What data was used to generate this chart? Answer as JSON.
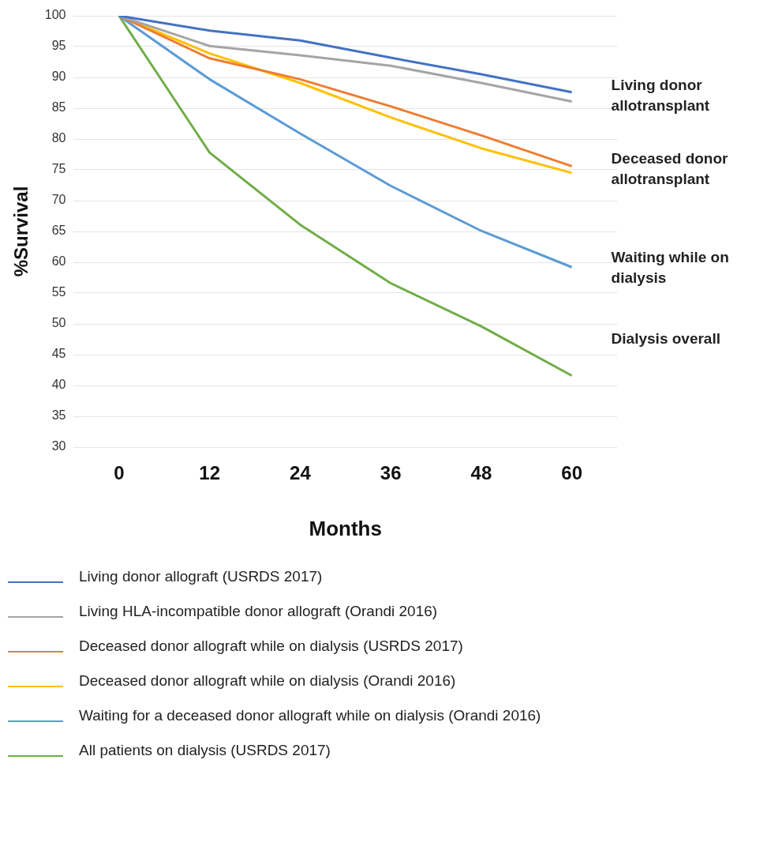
{
  "chart_data": {
    "type": "line",
    "xlabel": "Months",
    "ylabel": "%Survival",
    "categories": [
      "0",
      "12",
      "24",
      "36",
      "48",
      "60"
    ],
    "ylim": [
      30,
      100
    ],
    "yticks": [
      30,
      35,
      40,
      45,
      50,
      55,
      60,
      65,
      70,
      75,
      80,
      85,
      90,
      95,
      100
    ],
    "grid": "y",
    "legend": "bottom",
    "marker": "none",
    "line_style": "solid",
    "series": [
      {
        "name": "Living donor allograft (USRDS 2017)",
        "color": "#4472c4",
        "values": [
          100,
          97.6,
          96,
          93.2,
          90.5,
          87.6
        ]
      },
      {
        "name": "Living HLA-incompatible donor allograft (Orandi 2016)",
        "color": "#a5a5a5",
        "values": [
          100,
          95.1,
          93.6,
          91.9,
          89.1,
          86.1
        ]
      },
      {
        "name": "Deceased donor allograft while on dialysis (USRDS 2017)",
        "color": "#ed7d31",
        "values": [
          100,
          93.1,
          89.7,
          85.3,
          80.6,
          75.6
        ]
      },
      {
        "name": "Deceased donor allograft while on dialysis (Orandi 2016)",
        "color": "#ffc000",
        "values": [
          100,
          93.9,
          89.1,
          83.5,
          78.5,
          74.5
        ]
      },
      {
        "name": "Waiting for a deceased donor allograft while on dialysis (Orandi 2016)",
        "color": "#5b9bd5",
        "values": [
          100,
          89.7,
          80.9,
          72.4,
          65.1,
          59.2
        ]
      },
      {
        "name": "All patients on dialysis (USRDS 2017)",
        "color": "#70ad47",
        "values": [
          100,
          77.8,
          66.1,
          56.6,
          49.6,
          41.6
        ]
      }
    ],
    "annotations": [
      {
        "text": "Living donor allotransplant",
        "x": "60",
        "y": 87
      },
      {
        "text": "Deceased donor allotransplant",
        "x": "60",
        "y": 75
      },
      {
        "text": "Waiting while on dialysis",
        "x": "60",
        "y": 59
      },
      "Dialysis overall"
    ]
  }
}
